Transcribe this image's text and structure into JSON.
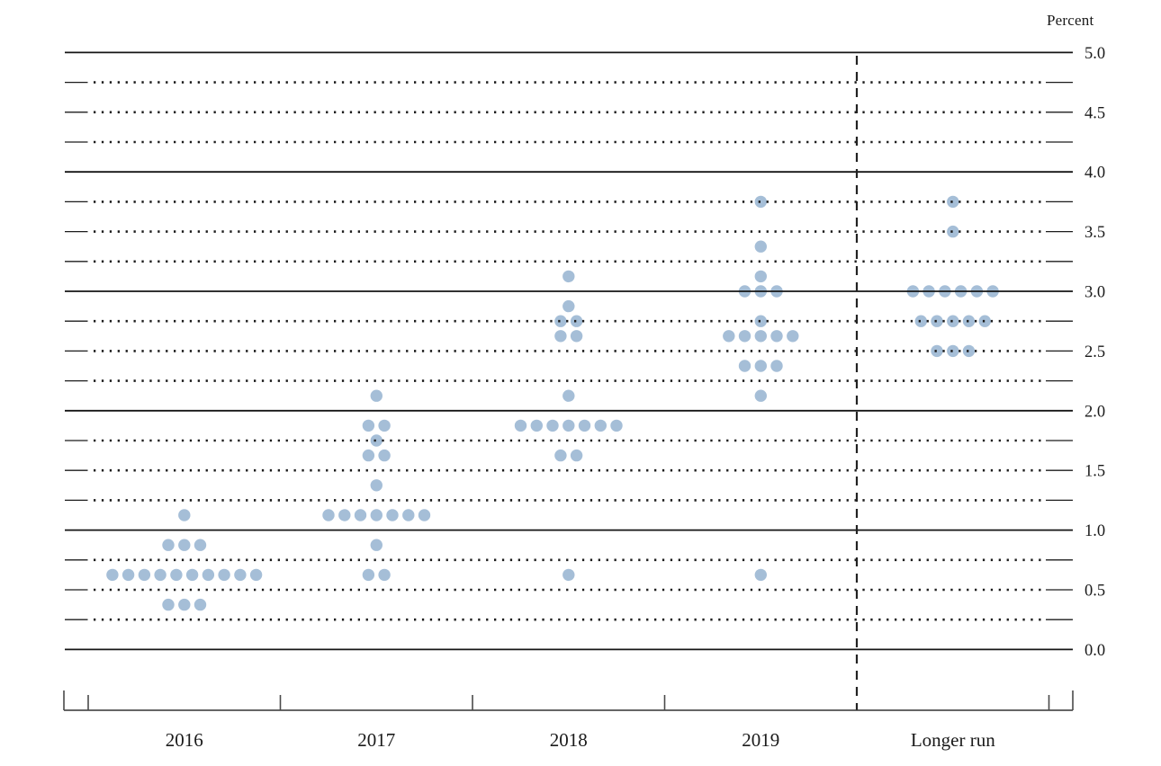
{
  "chart_data": {
    "type": "scatter",
    "subtype": "fomc-dot-plot",
    "ylabel": "Percent",
    "ylim": [
      0.0,
      5.0
    ],
    "grid_interval": 0.25,
    "label_interval": 0.5,
    "grid_style": "solid lines at whole percents, dotted lines at quarter percents, short solid caps at both ends",
    "legend": "none",
    "y_tick_labels": [
      "5.0",
      "4.5",
      "4.0",
      "3.5",
      "3.0",
      "2.5",
      "2.0",
      "1.5",
      "1.0",
      "0.5",
      "0.0"
    ],
    "y_tick_values": [
      5.0,
      4.5,
      4.0,
      3.5,
      3.0,
      2.5,
      2.0,
      1.5,
      1.0,
      0.5,
      0.0
    ],
    "categories": [
      "2016",
      "2017",
      "2018",
      "2019",
      "Longer run"
    ],
    "separator": "dashed vertical line between 2019 and Longer run",
    "series": [
      {
        "category": "2016",
        "dots": [
          {
            "rate": 1.125,
            "count": 1
          },
          {
            "rate": 0.875,
            "count": 3
          },
          {
            "rate": 0.625,
            "count": 10
          },
          {
            "rate": 0.375,
            "count": 3
          }
        ]
      },
      {
        "category": "2017",
        "dots": [
          {
            "rate": 2.125,
            "count": 1
          },
          {
            "rate": 1.875,
            "count": 2
          },
          {
            "rate": 1.75,
            "count": 1
          },
          {
            "rate": 1.625,
            "count": 2
          },
          {
            "rate": 1.375,
            "count": 1
          },
          {
            "rate": 1.125,
            "count": 7
          },
          {
            "rate": 0.875,
            "count": 1
          },
          {
            "rate": 0.625,
            "count": 2
          }
        ]
      },
      {
        "category": "2018",
        "dots": [
          {
            "rate": 3.125,
            "count": 1
          },
          {
            "rate": 2.875,
            "count": 1
          },
          {
            "rate": 2.75,
            "count": 2
          },
          {
            "rate": 2.625,
            "count": 2
          },
          {
            "rate": 2.125,
            "count": 1
          },
          {
            "rate": 1.875,
            "count": 7
          },
          {
            "rate": 1.625,
            "count": 2
          },
          {
            "rate": 0.625,
            "count": 1
          }
        ]
      },
      {
        "category": "2019",
        "dots": [
          {
            "rate": 3.75,
            "count": 1
          },
          {
            "rate": 3.375,
            "count": 1
          },
          {
            "rate": 3.125,
            "count": 1
          },
          {
            "rate": 3.0,
            "count": 3
          },
          {
            "rate": 2.75,
            "count": 1
          },
          {
            "rate": 2.625,
            "count": 5
          },
          {
            "rate": 2.375,
            "count": 3
          },
          {
            "rate": 2.125,
            "count": 1
          },
          {
            "rate": 0.625,
            "count": 1
          }
        ]
      },
      {
        "category": "Longer run",
        "dots": [
          {
            "rate": 3.75,
            "count": 1
          },
          {
            "rate": 3.5,
            "count": 1
          },
          {
            "rate": 3.0,
            "count": 6
          },
          {
            "rate": 2.75,
            "count": 5
          },
          {
            "rate": 2.5,
            "count": 3
          }
        ]
      }
    ],
    "colors": {
      "dot": "#a5bed7",
      "solid_grid": "#151515",
      "dotted_grid": "#1c1c1c",
      "dashed_separator": "#222222",
      "axis": "#333333",
      "tick": "#4a4a4a",
      "text": "#1a1a1a",
      "background": "#ffffff"
    }
  }
}
